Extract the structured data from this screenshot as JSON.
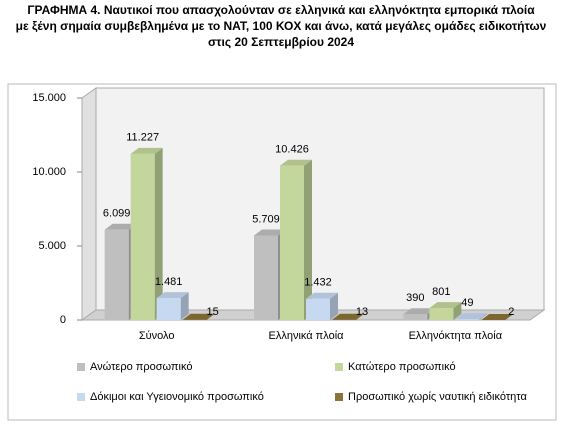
{
  "chart_data": {
    "type": "bar3d",
    "title": [
      "ΓΡΑΦΗΜΑ 4. Ναυτικοί που απασχολούνταν σε ελληνικά και ελληνόκτητα εμπορικά πλοία",
      "με ξένη σημαία συμβεβλημένα με το ΝΑΤ, 100 ΚΟΧ και άνω, κατά μεγάλες ομάδες ειδικοτήτων",
      "στις 20 Σεπτεμβρίου 2024"
    ],
    "categories": [
      "Σύνολο",
      "Ελληνικά πλοία",
      "Ελληνόκτητα πλοία"
    ],
    "series": [
      {
        "name": "Ανώτερο προσωπικό",
        "color": "#bfbfbf",
        "values": [
          6099,
          5709,
          390
        ],
        "value_labels": [
          "6.099",
          "5.709",
          "390"
        ]
      },
      {
        "name": "Κατώτερο προσωπικό",
        "color": "#c3d69b",
        "values": [
          11227,
          10426,
          801
        ],
        "value_labels": [
          "11.227",
          "10.426",
          "801"
        ]
      },
      {
        "name": "Δόκιμοι και Υγειονομικό προσωπικό",
        "color": "#c6d9f1",
        "values": [
          1481,
          1432,
          49
        ],
        "value_labels": [
          "1.481",
          "1.432",
          "49"
        ]
      },
      {
        "name": "Προσωπικό χωρίς ναυτική ειδικότητα",
        "color": "#8b7236",
        "values": [
          15,
          13,
          2
        ]
      }
    ],
    "ylim": [
      0,
      15000
    ],
    "yticks": [
      0,
      {
        "value": 5000,
        "label": "5.000"
      },
      {
        "value": 10000,
        "label": "10.000"
      },
      {
        "value": 15000,
        "label": "15.000"
      }
    ],
    "grid": false
  }
}
